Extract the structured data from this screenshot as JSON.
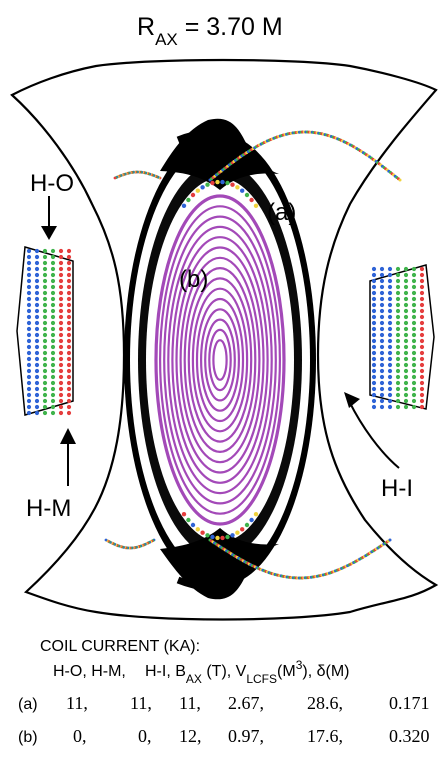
{
  "title": {
    "main": "R",
    "subscript": "AX",
    "rest": " = 3.70 M"
  },
  "labels": {
    "a": "(a)",
    "b": "(b)",
    "ho": "H-O",
    "hm": "H-M",
    "hi": "H-I"
  },
  "table": {
    "heading": "COIL CURRENT (KA):",
    "header": {
      "h1": "H-O, H-M,",
      "h2": "H-I, B",
      "h2_sub": "AX",
      "h2_rest": " (T), V",
      "h3_sub": "LCFS",
      "h3_rest": "(M",
      "h3_sup": "3",
      "h3_end": "), δ(M)"
    },
    "rows": [
      {
        "label": "(a)",
        "ho": "11,",
        "hm": "11,",
        "hi": "11,",
        "bax": "2.67,",
        "vlcfs": "28.6,",
        "delta": "0.171"
      },
      {
        "label": "(b)",
        "ho": "0,",
        "hm": "0,",
        "hi": "12,",
        "bax": "0.97,",
        "vlcfs": "17.6,",
        "delta": "0.320"
      }
    ]
  },
  "colors": {
    "black": "#000000",
    "purple": "#a349b8",
    "blue": "#2e63d6",
    "green": "#3fb34b",
    "red": "#e53d3d",
    "yellow": "#f0d33d"
  }
}
